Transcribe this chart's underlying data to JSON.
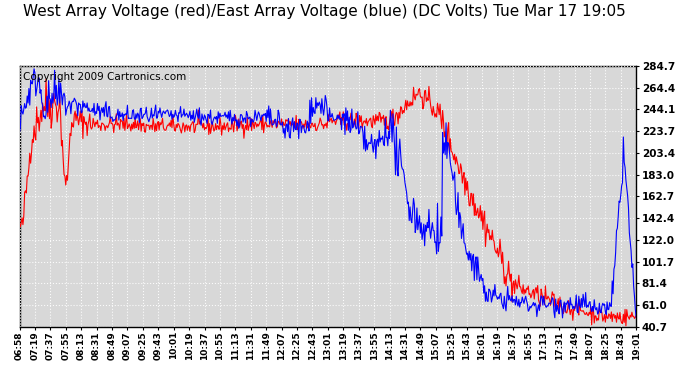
{
  "title": "West Array Voltage (red)/East Array Voltage (blue) (DC Volts) Tue Mar 17 19:05",
  "copyright": "Copyright 2009 Cartronics.com",
  "ylabel_ticks": [
    40.7,
    61.0,
    81.4,
    101.7,
    122.0,
    142.4,
    162.7,
    183.0,
    203.4,
    223.7,
    244.1,
    264.4,
    284.7
  ],
  "xlabels": [
    "06:58",
    "07:19",
    "07:37",
    "07:55",
    "08:13",
    "08:31",
    "08:49",
    "09:07",
    "09:25",
    "09:43",
    "10:01",
    "10:19",
    "10:37",
    "10:55",
    "11:13",
    "11:31",
    "11:49",
    "12:07",
    "12:25",
    "12:43",
    "13:01",
    "13:19",
    "13:37",
    "13:55",
    "14:13",
    "14:31",
    "14:49",
    "15:07",
    "15:25",
    "15:43",
    "16:01",
    "16:19",
    "16:37",
    "16:55",
    "17:13",
    "17:31",
    "17:49",
    "18:07",
    "18:25",
    "18:43",
    "19:01"
  ],
  "bg_color": "#d8d8d8",
  "fig_bg": "#ffffff",
  "red_color": "#ff0000",
  "blue_color": "#0000ff",
  "ylim": [
    40.7,
    284.7
  ],
  "title_fontsize": 11,
  "copyright_fontsize": 7.5
}
